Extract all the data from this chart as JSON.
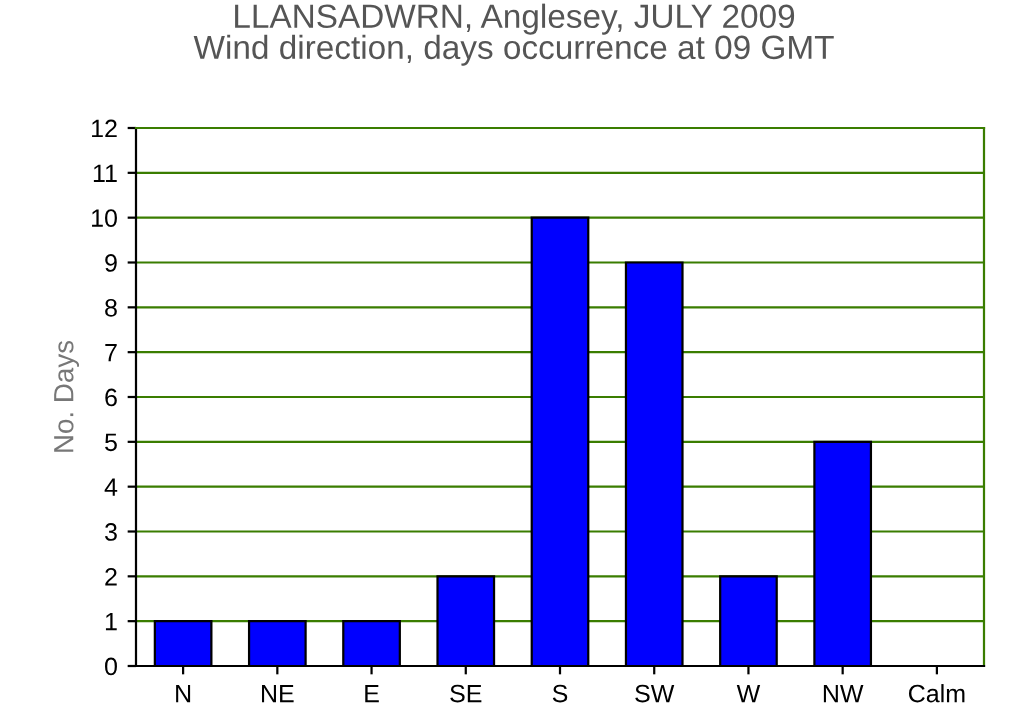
{
  "chart_data": {
    "type": "bar",
    "title": "LLANSADWRN, Anglesey, JULY 2009\nWind direction, days occurrence at 09 GMT",
    "ylabel": "No. Days",
    "categories": [
      "N",
      "NE",
      "E",
      "SE",
      "S",
      "SW",
      "W",
      "NW",
      "Calm"
    ],
    "values": [
      1,
      1,
      1,
      2,
      10,
      9,
      2,
      5,
      0
    ],
    "color": "#0000ff",
    "ylim": [
      0,
      12
    ],
    "yticks": [
      0,
      1,
      2,
      3,
      4,
      5,
      6,
      7,
      8,
      9,
      10,
      11,
      12
    ],
    "grid": "y"
  }
}
